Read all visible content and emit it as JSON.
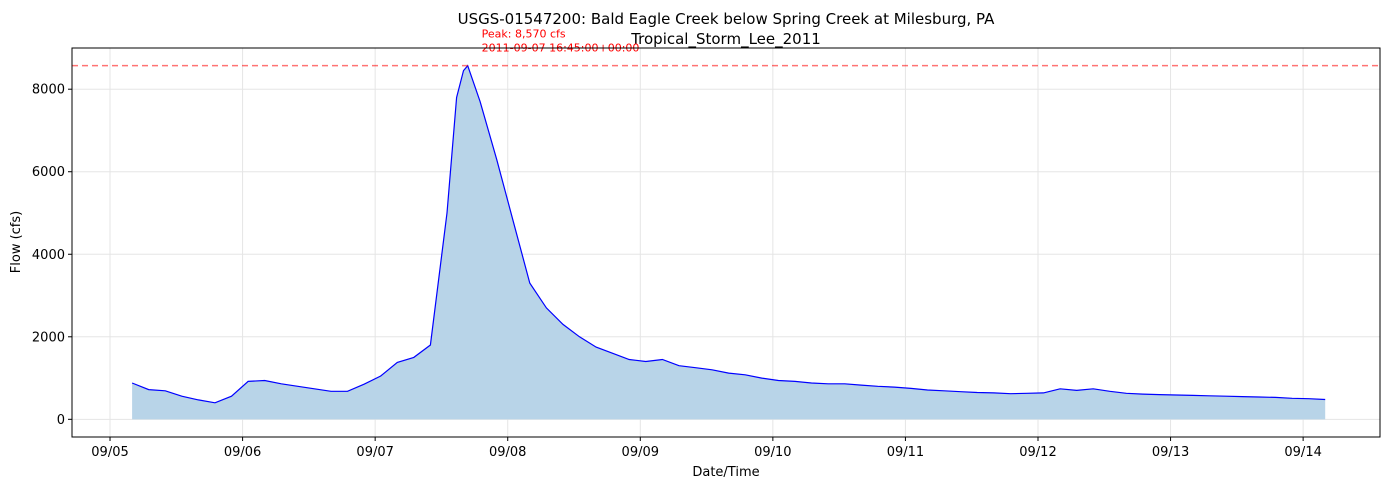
{
  "chart_data": {
    "type": "area",
    "title": "USGS-01547200: Bald Eagle Creek below Spring Creek at Milesburg, PA",
    "subtitle": "Tropical_Storm_Lee_2011",
    "xlabel": "Date/Time",
    "ylabel": "Flow (cfs)",
    "x": [
      "2011-09-05T04:00",
      "2011-09-05T07:00",
      "2011-09-05T10:00",
      "2011-09-05T13:00",
      "2011-09-05T16:00",
      "2011-09-05T19:00",
      "2011-09-05T22:00",
      "2011-09-06T01:00",
      "2011-09-06T04:00",
      "2011-09-06T07:00",
      "2011-09-06T10:00",
      "2011-09-06T13:00",
      "2011-09-06T16:00",
      "2011-09-06T19:00",
      "2011-09-06T22:00",
      "2011-09-07T01:00",
      "2011-09-07T04:00",
      "2011-09-07T07:00",
      "2011-09-07T10:00",
      "2011-09-07T13:00",
      "2011-09-07T14:45",
      "2011-09-07T16:00",
      "2011-09-07T16:45",
      "2011-09-07T19:00",
      "2011-09-07T22:00",
      "2011-09-08T01:00",
      "2011-09-08T04:00",
      "2011-09-08T07:00",
      "2011-09-08T10:00",
      "2011-09-08T13:00",
      "2011-09-08T16:00",
      "2011-09-08T19:00",
      "2011-09-08T22:00",
      "2011-09-09T01:00",
      "2011-09-09T04:00",
      "2011-09-09T07:00",
      "2011-09-09T10:00",
      "2011-09-09T13:00",
      "2011-09-09T16:00",
      "2011-09-09T19:00",
      "2011-09-09T22:00",
      "2011-09-10T01:00",
      "2011-09-10T04:00",
      "2011-09-10T07:00",
      "2011-09-10T10:00",
      "2011-09-10T13:00",
      "2011-09-10T16:00",
      "2011-09-10T19:00",
      "2011-09-10T22:00",
      "2011-09-11T01:00",
      "2011-09-11T04:00",
      "2011-09-11T07:00",
      "2011-09-11T10:00",
      "2011-09-11T13:00",
      "2011-09-11T16:00",
      "2011-09-11T19:00",
      "2011-09-11T22:00",
      "2011-09-12T01:00",
      "2011-09-12T04:00",
      "2011-09-12T07:00",
      "2011-09-12T10:00",
      "2011-09-12T13:00",
      "2011-09-12T16:00",
      "2011-09-12T19:00",
      "2011-09-12T22:00",
      "2011-09-13T01:00",
      "2011-09-13T04:00",
      "2011-09-13T07:00",
      "2011-09-13T10:00",
      "2011-09-13T13:00",
      "2011-09-13T16:00",
      "2011-09-13T19:00",
      "2011-09-13T22:00",
      "2011-09-14T01:00",
      "2011-09-14T04:00"
    ],
    "series": [
      {
        "name": "Flow",
        "color": "#0000ff",
        "fill": "#b8d4e8",
        "values": [
          880,
          720,
          690,
          560,
          470,
          400,
          560,
          920,
          940,
          860,
          800,
          740,
          680,
          680,
          850,
          1050,
          1380,
          1500,
          1800,
          5000,
          7800,
          8450,
          8570,
          7700,
          6300,
          4800,
          3300,
          2700,
          2300,
          2000,
          1750,
          1600,
          1450,
          1400,
          1450,
          1300,
          1250,
          1200,
          1120,
          1080,
          1000,
          940,
          920,
          880,
          860,
          860,
          830,
          800,
          780,
          750,
          710,
          690,
          670,
          650,
          640,
          620,
          630,
          640,
          740,
          700,
          740,
          680,
          630,
          610,
          600,
          590,
          580,
          570,
          560,
          550,
          540,
          530,
          510,
          500,
          480
        ]
      }
    ],
    "peak": {
      "value": 8570,
      "time": "2011-09-07T16:45",
      "label": "Peak: 8,570 cfs",
      "time_label": "2011-09-07 16:45:00+00:00",
      "color": "#ff0000"
    },
    "xlim": [
      "2011-09-04T17:07",
      "2011-09-14T13:55"
    ],
    "xticks": [
      {
        "value": "2011-09-05T00:00",
        "label": "09/05"
      },
      {
        "value": "2011-09-06T00:00",
        "label": "09/06"
      },
      {
        "value": "2011-09-07T00:00",
        "label": "09/07"
      },
      {
        "value": "2011-09-08T00:00",
        "label": "09/08"
      },
      {
        "value": "2011-09-09T00:00",
        "label": "09/09"
      },
      {
        "value": "2011-09-10T00:00",
        "label": "09/10"
      },
      {
        "value": "2011-09-11T00:00",
        "label": "09/11"
      },
      {
        "value": "2011-09-12T00:00",
        "label": "09/12"
      },
      {
        "value": "2011-09-13T00:00",
        "label": "09/13"
      },
      {
        "value": "2011-09-14T00:00",
        "label": "09/14"
      }
    ],
    "ylim": [
      -428.5,
      8998.5
    ],
    "yticks": [
      0,
      2000,
      4000,
      6000,
      8000
    ],
    "grid": true
  }
}
